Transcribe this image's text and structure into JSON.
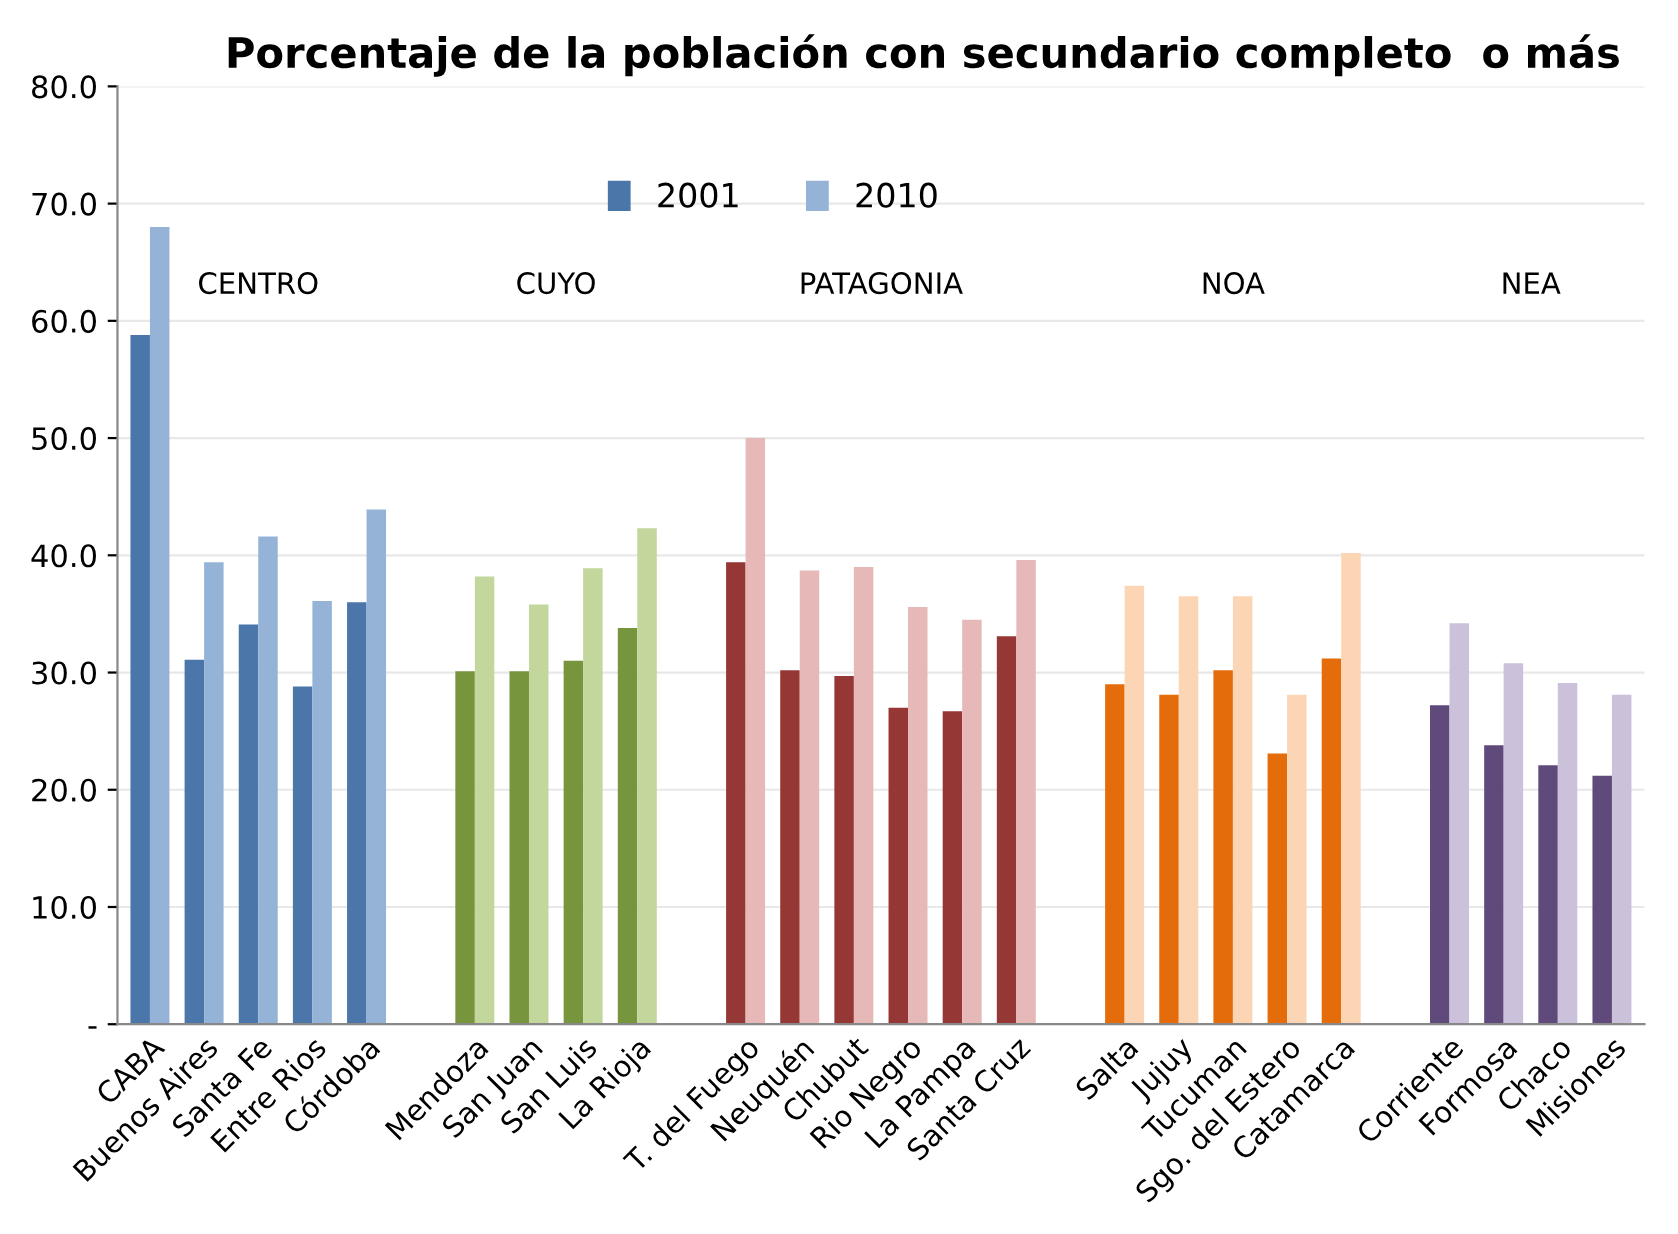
{
  "chart_data": {
    "type": "bar",
    "title": "Porcentaje de la población con secundario completo  o más",
    "categories": [
      "CABA",
      "Buenos Aires",
      "Santa Fe",
      "Entre Rios",
      "Córdoba",
      null,
      "Mendoza",
      "San Juan",
      "San Luis",
      "La Rioja",
      null,
      "T. del Fuego",
      "Neuquén",
      "Chubut",
      "Rio Negro",
      "La Pampa",
      "Santa Cruz",
      null,
      "Salta",
      "Jujuy",
      "Tucuman",
      "Sgo. del Estero",
      "Catamarca",
      null,
      "Corriente",
      "Formosa",
      "Chaco",
      "Misiones"
    ],
    "series": [
      {
        "name": "2001",
        "color": "#4a76aa",
        "values": [
          58.8,
          31.1,
          34.1,
          28.8,
          36.0,
          null,
          30.1,
          30.1,
          31.0,
          33.8,
          null,
          39.4,
          30.2,
          29.7,
          27.0,
          26.7,
          33.1,
          null,
          29.0,
          28.1,
          30.2,
          23.1,
          31.2,
          null,
          27.2,
          23.8,
          22.1,
          21.2
        ],
        "colors": [
          "#4a76aa",
          "#4a76aa",
          "#4a76aa",
          "#4a76aa",
          "#4a76aa",
          null,
          "#77953d",
          "#77953d",
          "#77953d",
          "#77953d",
          null,
          "#953735",
          "#953735",
          "#953735",
          "#953735",
          "#953735",
          "#953735",
          null,
          "#e46c0a",
          "#e46c0a",
          "#e46c0a",
          "#e46c0a",
          "#e46c0a",
          null,
          "#604a7b",
          "#604a7b",
          "#604a7b",
          "#604a7b"
        ]
      },
      {
        "name": "2010",
        "color": "#95b3d7",
        "values": [
          68.0,
          39.4,
          41.6,
          36.1,
          43.9,
          null,
          38.2,
          35.8,
          38.9,
          42.3,
          null,
          50.0,
          38.7,
          39.0,
          35.6,
          34.5,
          39.6,
          null,
          37.4,
          36.5,
          36.5,
          28.1,
          40.2,
          null,
          34.2,
          30.8,
          29.1,
          28.1
        ],
        "colors": [
          "#95b3d7",
          "#95b3d7",
          "#95b3d7",
          "#95b3d7",
          "#95b3d7",
          null,
          "#c3d69b",
          "#c3d69b",
          "#c3d69b",
          "#c3d69b",
          null,
          "#e6b9b8",
          "#e6b9b8",
          "#e6b9b8",
          "#e6b9b8",
          "#e6b9b8",
          "#e6b9b8",
          null,
          "#fcd5b5",
          "#fcd5b5",
          "#fcd5b5",
          "#fcd5b5",
          "#fcd5b5",
          null,
          "#ccc1da",
          "#ccc1da",
          "#ccc1da",
          "#ccc1da"
        ]
      }
    ],
    "annotations": [
      "CENTRO",
      "CUYO",
      "PATAGONIA",
      "NOA",
      "NEA"
    ],
    "ylim": [
      0,
      80
    ],
    "yticks": [
      {
        "value": 0,
        "label": "-"
      },
      {
        "value": 10,
        "label": "10.0"
      },
      {
        "value": 20,
        "label": "20.0"
      },
      {
        "value": 30,
        "label": "30.0"
      },
      {
        "value": 40,
        "label": "40.0"
      },
      {
        "value": 50,
        "label": "50.0"
      },
      {
        "value": 60,
        "label": "60.0"
      },
      {
        "value": 70,
        "label": "70.0"
      },
      {
        "value": 80,
        "label": "80.0"
      }
    ],
    "grid": "y",
    "legend": "top"
  }
}
